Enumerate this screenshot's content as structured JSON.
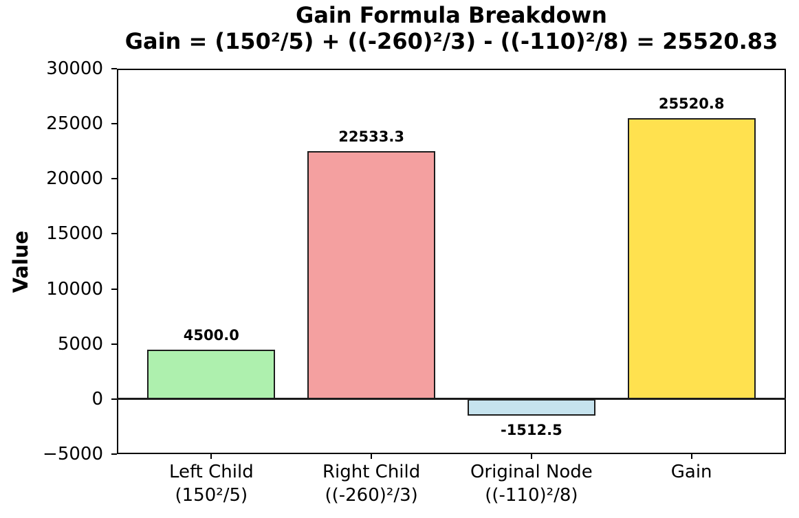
{
  "title": {
    "line1": "Gain Formula Breakdown",
    "line2": "Gain = (150²/5) + ((-260)²/3) - ((-110)²/8) = 25520.83"
  },
  "chart_data": {
    "type": "bar",
    "title": "Gain Formula Breakdown",
    "subtitle": "Gain = (150²/5) + ((-260)²/3) - ((-110)²/8) = 25520.83",
    "xlabel": "",
    "ylabel": "Value",
    "categories": [
      [
        "Left Child",
        "(150²/5)"
      ],
      [
        "Right Child",
        "((-260)²/3)"
      ],
      [
        "Original Node",
        "((-110)²/8)"
      ],
      [
        "Gain"
      ]
    ],
    "values": [
      4500.0,
      22533.3,
      -1512.5,
      25520.8
    ],
    "bar_labels": [
      "4500.0",
      "22533.3",
      "-1512.5",
      "25520.8"
    ],
    "bar_colors": [
      "#aef0ae",
      "#f4a0a0",
      "#c6e3ee",
      "#ffe14f"
    ],
    "bar_edge_color": "#1c1c1c",
    "ylim": [
      -5000,
      30000
    ],
    "yticks": [
      30000,
      25000,
      20000,
      15000,
      10000,
      5000,
      0,
      -5000
    ],
    "ytick_labels": [
      "30000",
      "25000",
      "20000",
      "15000",
      "10000",
      "5000",
      "0",
      "−5000"
    ],
    "grid": false,
    "legend": null,
    "zero_line": true
  }
}
